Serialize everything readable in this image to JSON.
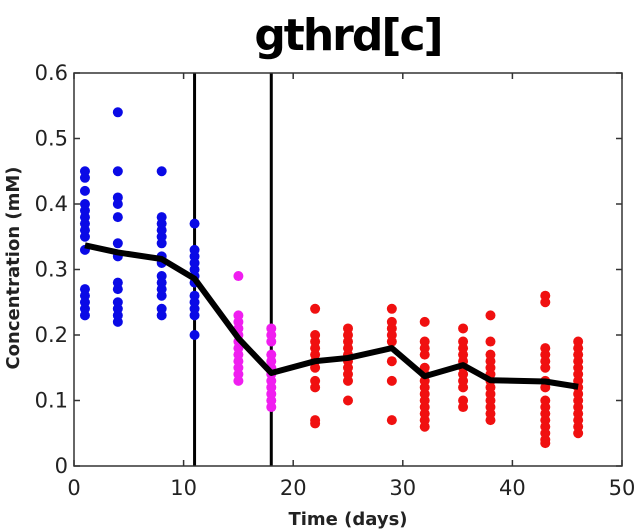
{
  "chart_data": {
    "type": "scatter",
    "title": "gthrd[c]",
    "xlabel": "Time (days)",
    "ylabel": "Concentration (mM)",
    "xlim": [
      0,
      50
    ],
    "ylim": [
      0,
      0.6
    ],
    "xticks": [
      "0",
      "10",
      "20",
      "30",
      "40",
      "50"
    ],
    "yticks": [
      "0",
      "0.1",
      "0.2",
      "0.3",
      "0.4",
      "0.5",
      "0.6"
    ],
    "grid": false,
    "legend": "none",
    "vertical_lines": [
      11,
      18
    ],
    "colors": {
      "phase1": "#0a0ae6",
      "phase2": "#f01ef0",
      "phase3": "#f01010",
      "mean_line": "#000000",
      "axis": "#333333"
    },
    "series": [
      {
        "points": [
          [
            1,
            0.23
          ],
          [
            1,
            0.24
          ],
          [
            1,
            0.25
          ],
          [
            1,
            0.26
          ],
          [
            1,
            0.27
          ],
          [
            1,
            0.33
          ],
          [
            1,
            0.35
          ],
          [
            1,
            0.36
          ],
          [
            1,
            0.37
          ],
          [
            1,
            0.38
          ],
          [
            1,
            0.39
          ],
          [
            1,
            0.4
          ],
          [
            1,
            0.42
          ],
          [
            1,
            0.44
          ],
          [
            1,
            0.45
          ],
          [
            4,
            0.22
          ],
          [
            4,
            0.23
          ],
          [
            4,
            0.24
          ],
          [
            4,
            0.25
          ],
          [
            4,
            0.27
          ],
          [
            4,
            0.28
          ],
          [
            4,
            0.32
          ],
          [
            4,
            0.34
          ],
          [
            4,
            0.38
          ],
          [
            4,
            0.4
          ],
          [
            4,
            0.41
          ],
          [
            4,
            0.45
          ],
          [
            4,
            0.54
          ],
          [
            8,
            0.23
          ],
          [
            8,
            0.24
          ],
          [
            8,
            0.26
          ],
          [
            8,
            0.27
          ],
          [
            8,
            0.28
          ],
          [
            8,
            0.29
          ],
          [
            8,
            0.31
          ],
          [
            8,
            0.32
          ],
          [
            8,
            0.34
          ],
          [
            8,
            0.35
          ],
          [
            8,
            0.36
          ],
          [
            8,
            0.37
          ],
          [
            8,
            0.38
          ],
          [
            8,
            0.45
          ],
          [
            11,
            0.2
          ],
          [
            11,
            0.23
          ],
          [
            11,
            0.24
          ],
          [
            11,
            0.25
          ],
          [
            11,
            0.26
          ],
          [
            11,
            0.28
          ],
          [
            11,
            0.29
          ],
          [
            11,
            0.3
          ],
          [
            11,
            0.31
          ],
          [
            11,
            0.32
          ],
          [
            11,
            0.33
          ],
          [
            11,
            0.37
          ]
        ]
      },
      {
        "points": [
          [
            15,
            0.13
          ],
          [
            15,
            0.14
          ],
          [
            15,
            0.15
          ],
          [
            15,
            0.16
          ],
          [
            15,
            0.17
          ],
          [
            15,
            0.18
          ],
          [
            15,
            0.19
          ],
          [
            15,
            0.2
          ],
          [
            15,
            0.21
          ],
          [
            15,
            0.22
          ],
          [
            15,
            0.23
          ],
          [
            15,
            0.29
          ],
          [
            18,
            0.09
          ],
          [
            18,
            0.1
          ],
          [
            18,
            0.11
          ],
          [
            18,
            0.12
          ],
          [
            18,
            0.13
          ],
          [
            18,
            0.14
          ],
          [
            18,
            0.15
          ],
          [
            18,
            0.16
          ],
          [
            18,
            0.17
          ],
          [
            18,
            0.19
          ],
          [
            18,
            0.2
          ],
          [
            18,
            0.21
          ]
        ]
      },
      {
        "points": [
          [
            22,
            0.065
          ],
          [
            22,
            0.07
          ],
          [
            22,
            0.12
          ],
          [
            22,
            0.13
          ],
          [
            22,
            0.15
          ],
          [
            22,
            0.16
          ],
          [
            22,
            0.17
          ],
          [
            22,
            0.18
          ],
          [
            22,
            0.19
          ],
          [
            22,
            0.2
          ],
          [
            22,
            0.24
          ],
          [
            25,
            0.1
          ],
          [
            25,
            0.13
          ],
          [
            25,
            0.14
          ],
          [
            25,
            0.15
          ],
          [
            25,
            0.16
          ],
          [
            25,
            0.17
          ],
          [
            25,
            0.18
          ],
          [
            25,
            0.19
          ],
          [
            25,
            0.2
          ],
          [
            25,
            0.21
          ],
          [
            29,
            0.07
          ],
          [
            29,
            0.13
          ],
          [
            29,
            0.16
          ],
          [
            29,
            0.19
          ],
          [
            29,
            0.2
          ],
          [
            29,
            0.21
          ],
          [
            29,
            0.22
          ],
          [
            29,
            0.24
          ],
          [
            32,
            0.06
          ],
          [
            32,
            0.07
          ],
          [
            32,
            0.08
          ],
          [
            32,
            0.09
          ],
          [
            32,
            0.1
          ],
          [
            32,
            0.11
          ],
          [
            32,
            0.12
          ],
          [
            32,
            0.13
          ],
          [
            32,
            0.14
          ],
          [
            32,
            0.15
          ],
          [
            32,
            0.17
          ],
          [
            32,
            0.18
          ],
          [
            32,
            0.19
          ],
          [
            32,
            0.22
          ],
          [
            35.5,
            0.09
          ],
          [
            35.5,
            0.1
          ],
          [
            35.5,
            0.12
          ],
          [
            35.5,
            0.13
          ],
          [
            35.5,
            0.14
          ],
          [
            35.5,
            0.15
          ],
          [
            35.5,
            0.16
          ],
          [
            35.5,
            0.17
          ],
          [
            35.5,
            0.18
          ],
          [
            35.5,
            0.19
          ],
          [
            35.5,
            0.21
          ],
          [
            38,
            0.07
          ],
          [
            38,
            0.08
          ],
          [
            38,
            0.09
          ],
          [
            38,
            0.1
          ],
          [
            38,
            0.11
          ],
          [
            38,
            0.12
          ],
          [
            38,
            0.13
          ],
          [
            38,
            0.14
          ],
          [
            38,
            0.15
          ],
          [
            38,
            0.16
          ],
          [
            38,
            0.17
          ],
          [
            38,
            0.19
          ],
          [
            38,
            0.23
          ],
          [
            43,
            0.035
          ],
          [
            43,
            0.04
          ],
          [
            43,
            0.05
          ],
          [
            43,
            0.06
          ],
          [
            43,
            0.07
          ],
          [
            43,
            0.08
          ],
          [
            43,
            0.09
          ],
          [
            43,
            0.1
          ],
          [
            43,
            0.12
          ],
          [
            43,
            0.13
          ],
          [
            43,
            0.15
          ],
          [
            43,
            0.16
          ],
          [
            43,
            0.17
          ],
          [
            43,
            0.18
          ],
          [
            43,
            0.25
          ],
          [
            43,
            0.26
          ],
          [
            46,
            0.05
          ],
          [
            46,
            0.06
          ],
          [
            46,
            0.07
          ],
          [
            46,
            0.08
          ],
          [
            46,
            0.09
          ],
          [
            46,
            0.1
          ],
          [
            46,
            0.11
          ],
          [
            46,
            0.12
          ],
          [
            46,
            0.13
          ],
          [
            46,
            0.14
          ],
          [
            46,
            0.15
          ],
          [
            46,
            0.16
          ],
          [
            46,
            0.17
          ],
          [
            46,
            0.18
          ],
          [
            46,
            0.19
          ]
        ]
      }
    ],
    "mean_line": {
      "x": [
        1,
        4,
        8,
        11,
        15,
        18,
        22,
        25,
        29,
        32,
        35.5,
        38,
        43,
        46
      ],
      "y": [
        0.337,
        0.326,
        0.316,
        0.286,
        0.195,
        0.142,
        0.16,
        0.165,
        0.18,
        0.137,
        0.154,
        0.131,
        0.129,
        0.121
      ]
    }
  }
}
